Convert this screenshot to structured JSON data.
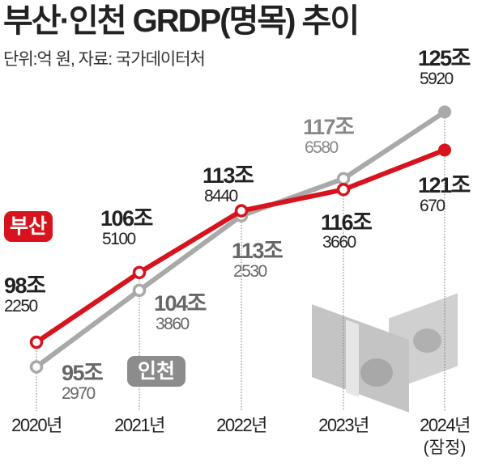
{
  "title": "부산·인천 GRDP(명목) 추이",
  "subtitle": "단위:억 원, 자료: 국가데이터처",
  "chart_data": {
    "type": "line",
    "title": "부산·인천 GRDP(명목) 추이",
    "unit": "억 원",
    "source": "국가데이터처",
    "categories": [
      "2020년",
      "2021년",
      "2022년",
      "2023년",
      "2024년"
    ],
    "category_note": "(잠정)",
    "series": [
      {
        "name": "부산",
        "color": "#d7141e",
        "values": [
          982250,
          1065100,
          1138440,
          1163660,
          1210670
        ],
        "labels": [
          [
            "98조",
            "2250"
          ],
          [
            "106조",
            "5100"
          ],
          [
            "113조",
            "8440"
          ],
          [
            "116조",
            "3660"
          ],
          [
            "121조",
            "670"
          ]
        ]
      },
      {
        "name": "인천",
        "color": "#a9a9a9",
        "values": [
          952970,
          1043860,
          1132530,
          1176580,
          1255920
        ],
        "labels": [
          [
            "95조",
            "2970"
          ],
          [
            "104조",
            "3860"
          ],
          [
            "113조",
            "2530"
          ],
          [
            "117조",
            "6580"
          ],
          [
            "125조",
            "5920"
          ]
        ]
      }
    ]
  }
}
